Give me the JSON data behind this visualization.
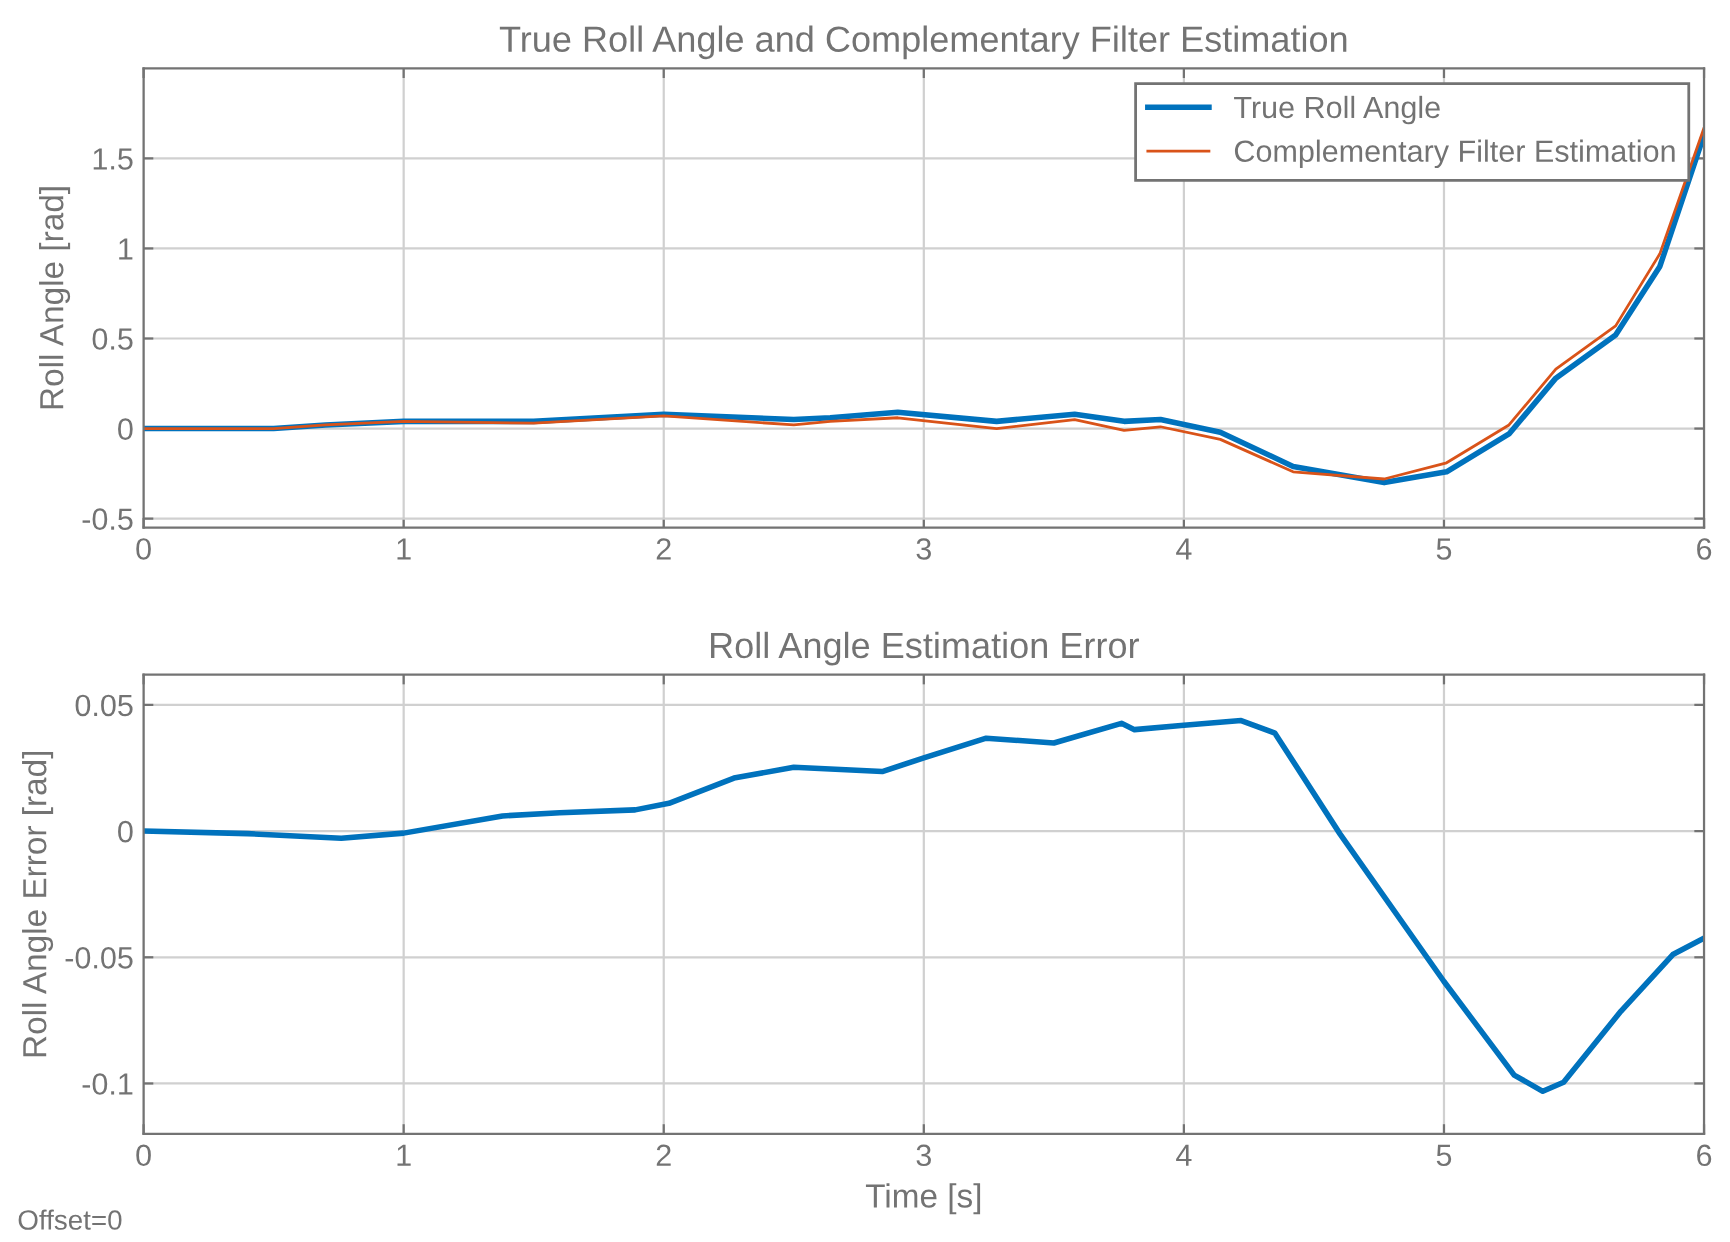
{
  "chart_data": [
    {
      "type": "line",
      "title": "True Roll Angle and Complementary Filter Estimation",
      "ylabel": "Roll Angle [rad]",
      "xlim": [
        0,
        6
      ],
      "ylim": [
        -0.55,
        2.0
      ],
      "xticks": [
        0,
        1,
        2,
        3,
        4,
        5,
        6
      ],
      "yticks": [
        -0.5,
        0,
        0.5,
        1,
        1.5
      ],
      "grid": true,
      "legend": "top right",
      "marker": "none",
      "line_style": "solid",
      "series": [
        {
          "name": "True Roll Angle",
          "color": "#0072bd",
          "x": [
            0,
            0.5,
            0.7,
            1,
            1.5,
            2,
            2.5,
            2.64,
            2.9,
            3.28,
            3.58,
            3.77,
            3.91,
            4.14,
            4.42,
            4.77,
            5.01,
            5.25,
            5.43,
            5.66,
            5.83,
            6.0
          ],
          "values": [
            0,
            0,
            0.02,
            0.04,
            0.04,
            0.08,
            0.05,
            0.06,
            0.09,
            0.04,
            0.08,
            0.04,
            0.05,
            -0.02,
            -0.21,
            -0.3,
            -0.24,
            -0.03,
            0.28,
            0.52,
            0.9,
            1.63
          ]
        },
        {
          "name": "Complementary Filter Estimation",
          "color": "#d95319",
          "x": [
            0,
            0.5,
            0.7,
            1,
            1.5,
            2,
            2.5,
            2.64,
            2.9,
            3.28,
            3.58,
            3.77,
            3.91,
            4.14,
            4.42,
            4.77,
            5.01,
            5.25,
            5.43,
            5.66,
            5.83,
            6.0
          ],
          "values": [
            0,
            0,
            0.02,
            0.04,
            0.03,
            0.07,
            0.02,
            0.04,
            0.06,
            0,
            0.05,
            -0.01,
            0.01,
            -0.06,
            -0.24,
            -0.28,
            -0.19,
            0.02,
            0.33,
            0.57,
            0.97,
            1.67
          ]
        }
      ]
    },
    {
      "type": "line",
      "title": "Roll Angle Estimation Error",
      "xlabel": "Time [s]",
      "ylabel": "Roll Angle Error [rad]",
      "xlim": [
        0,
        6
      ],
      "ylim": [
        -0.12,
        0.062
      ],
      "xticks": [
        0,
        1,
        2,
        3,
        4,
        5,
        6
      ],
      "yticks": [
        0.05,
        0,
        {
          "value": -0.05,
          "label": "-0.05"
        },
        {
          "value": -0.1,
          "label": "-0.1"
        }
      ],
      "grid": true,
      "marker": "none",
      "line_style": "solid",
      "annotations": [
        "Offset=0"
      ],
      "series": [
        {
          "color": "#0072bd",
          "x": [
            0,
            0.4,
            0.76,
            1,
            1.38,
            1.6,
            1.89,
            2.02,
            2.27,
            2.5,
            2.84,
            3.0,
            3.24,
            3.5,
            3.76,
            3.81,
            4.0,
            4.22,
            4.35,
            4.6,
            5.0,
            5.27,
            5.38,
            5.46,
            5.68,
            5.88,
            6.0
          ],
          "values": [
            0,
            -0.001,
            -0.0028,
            -0.0008,
            0.006,
            0.0073,
            0.0084,
            0.011,
            0.021,
            0.0253,
            0.0236,
            0.029,
            0.0368,
            0.0349,
            0.0427,
            0.0402,
            0.0419,
            0.0438,
            0.0388,
            -0.0011,
            -0.0596,
            -0.0967,
            -0.1031,
            -0.0995,
            -0.0714,
            -0.0489,
            -0.0424
          ]
        }
      ]
    }
  ]
}
